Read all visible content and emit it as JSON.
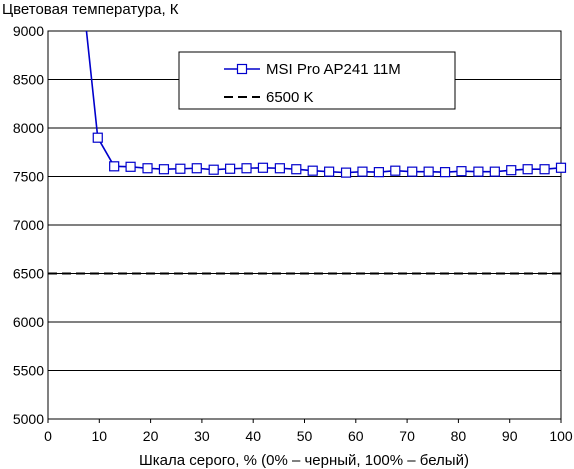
{
  "chart_data": {
    "type": "line",
    "ylabel": "Цветовая температура, К",
    "xlabel": "Шкала серого, % (0% – черный, 100% – белый)",
    "xlim": [
      0,
      100
    ],
    "ylim": [
      5000,
      9000
    ],
    "x_ticks": [
      0,
      10,
      20,
      30,
      40,
      50,
      60,
      70,
      80,
      90,
      100
    ],
    "y_ticks": [
      5000,
      5500,
      6000,
      6500,
      7000,
      7500,
      8000,
      8500,
      9000
    ],
    "grid": "horizontal",
    "legend_position": "top-center",
    "series": [
      {
        "name": "MSI Pro AP241 11M",
        "color": "#0000cc",
        "marker": "square-open",
        "line": "solid",
        "x": [
          6.5,
          9.7,
          12.9,
          16.1,
          19.4,
          22.6,
          25.8,
          29.0,
          32.3,
          35.5,
          38.7,
          41.9,
          45.2,
          48.4,
          51.6,
          54.8,
          58.1,
          61.3,
          64.5,
          67.7,
          71.0,
          74.2,
          77.4,
          80.6,
          83.9,
          87.1,
          90.3,
          93.5,
          96.8,
          100.0
        ],
        "y": [
          9500,
          7900,
          7605,
          7600,
          7585,
          7575,
          7580,
          7585,
          7570,
          7580,
          7585,
          7590,
          7585,
          7575,
          7560,
          7550,
          7540,
          7550,
          7545,
          7560,
          7550,
          7550,
          7545,
          7555,
          7550,
          7550,
          7565,
          7575,
          7575,
          7590
        ]
      },
      {
        "name": "6500 K",
        "color": "#000000",
        "marker": "none",
        "line": "dashed",
        "x": [
          0,
          100
        ],
        "y": [
          6500,
          6500
        ]
      }
    ]
  }
}
